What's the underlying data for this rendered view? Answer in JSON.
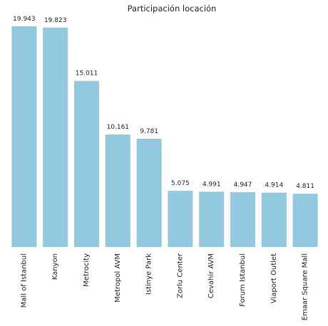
{
  "chart_data": {
    "type": "bar",
    "title": "Participación locación",
    "xlabel": "",
    "ylabel": "",
    "categories": [
      "Mall of Istanbul",
      "Kanyon",
      "Metrocity",
      "Metropol AVM",
      "Istinye Park",
      "Zorlu Center",
      "Cevahir AVM",
      "Forum Istanbul",
      "Viaport Outlet",
      "Emaar Square Mall"
    ],
    "values": [
      19943,
      19823,
      15011,
      10161,
      9781,
      5075,
      4991,
      4947,
      4914,
      4811
    ],
    "value_labels": [
      "19.943",
      "19.823",
      "15.011",
      "10.161",
      "9.781",
      "5.075",
      "4.991",
      "4.947",
      "4.914",
      "4.811"
    ],
    "ylim": [
      0,
      19943
    ],
    "grid": false,
    "bar_color": "#92c9de",
    "text_color": "#262626"
  }
}
